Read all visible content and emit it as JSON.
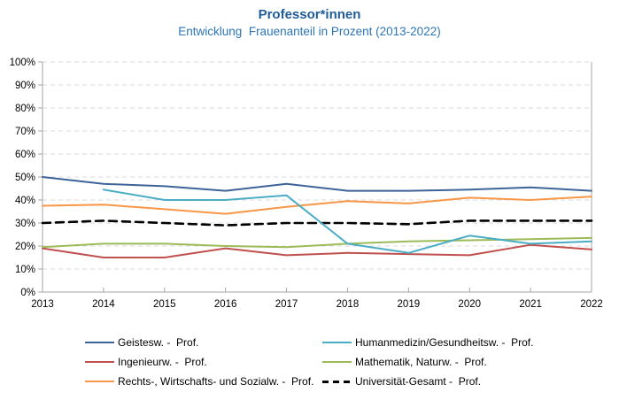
{
  "header": {
    "title": "Professor*innen",
    "subtitle": "Entwicklung  Frauenanteil in Prozent (2013-2022)"
  },
  "colors": {
    "title": "#1F5C99",
    "subtitle": "#2E75B6",
    "grid": "#D9D9D9",
    "axis": "#A6A6A6",
    "tick_label": "#000000"
  },
  "chart_data": {
    "type": "line",
    "title": "Professor*innen",
    "subtitle": "Entwicklung Frauenanteil in Prozent (2013-2022)",
    "x": [
      "2013",
      "2014",
      "2015",
      "2016",
      "2017",
      "2018",
      "2019",
      "2020",
      "2021",
      "2022"
    ],
    "ylim": [
      0,
      100
    ],
    "ytick_step": 10,
    "y_tick_labels": [
      "0%",
      "10%",
      "20%",
      "30%",
      "40%",
      "50%",
      "60%",
      "70%",
      "80%",
      "90%",
      "100%"
    ],
    "grid": "horizontal-dashed",
    "legend_position": "bottom",
    "legend_columns": 2,
    "series": [
      {
        "id": "geisteswissenschaften",
        "name": "Geistesw. -  Prof.",
        "color": "#3E6399",
        "dash": "solid",
        "values": [
          50,
          47,
          46,
          44,
          47,
          44,
          44,
          44.5,
          45.5,
          44
        ]
      },
      {
        "id": "humanmedizin-gesundheitswissenschaften",
        "name": "Humanmedizin/Gesundheitsw. -  Prof.",
        "color": "#4BACC6",
        "dash": "solid",
        "values": [
          null,
          44.5,
          40,
          40,
          42,
          21,
          17,
          24.5,
          21,
          22
        ]
      },
      {
        "id": "ingenieurwissenschaften",
        "name": "Ingenieurw. -  Prof.",
        "color": "#C0504D",
        "dash": "solid",
        "values": [
          19,
          15,
          15,
          19,
          16,
          17,
          16.5,
          16,
          20.5,
          18.5
        ]
      },
      {
        "id": "mathematik-naturwissenschaften",
        "name": "Mathematik, Naturw. -  Prof.",
        "color": "#9BBB59",
        "dash": "solid",
        "values": [
          19.5,
          21,
          21,
          20,
          19.5,
          21,
          22,
          22.5,
          23,
          23.5
        ]
      },
      {
        "id": "rechts-wirtschafts-sozialwissenschaften",
        "name": "Rechts-, Wirtschafts- und Sozialw. -  Prof.",
        "color": "#F79646",
        "dash": "solid",
        "values": [
          37.5,
          38,
          36,
          34,
          37,
          39.5,
          38.5,
          41,
          40,
          41.5
        ]
      },
      {
        "id": "universitaet-gesamt",
        "name": "Universität-Gesamt -  Prof.",
        "color": "#000000",
        "dash": "dashed",
        "values": [
          30,
          31,
          30,
          29,
          30,
          30,
          29.5,
          31,
          31,
          31
        ]
      }
    ],
    "draw_order": [
      5,
      0,
      2,
      3,
      4,
      1
    ]
  }
}
